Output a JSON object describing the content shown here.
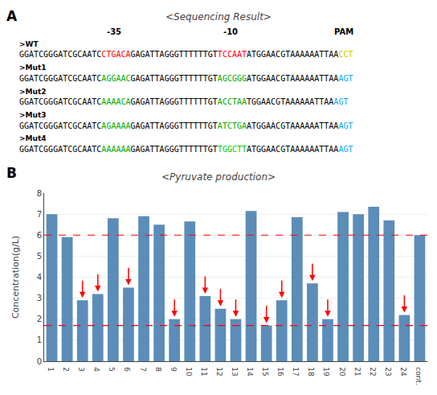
{
  "chart_data": [
    {
      "type": "text",
      "panel_label": "A",
      "title": "<Sequencing Result>",
      "annotations": [
        "-35",
        "-10",
        "PAM"
      ],
      "sequences": [
        {
          "label": ">WT",
          "parts": [
            {
              "text": "GGATCGGGATCGCAATC",
              "color": "black"
            },
            {
              "text": "CTGACA",
              "color": "red"
            },
            {
              "text": "GAGATTAGGGTTTTTTGT",
              "color": "black"
            },
            {
              "text": "TCCAAT",
              "color": "red"
            },
            {
              "text": "ATGGAACGTAAAAAATTAA",
              "color": "black"
            },
            {
              "text": "CCT",
              "color": "#cccc00"
            }
          ]
        },
        {
          "label": ">Mut1",
          "parts": [
            {
              "text": "GGATCGGGATCGCAATC",
              "color": "black"
            },
            {
              "text": "AGGAAC",
              "color": "#00aa00"
            },
            {
              "text": "GAGATTAGGGTTTTTTGT",
              "color": "black"
            },
            {
              "text": "AGCGGG",
              "color": "#00aa00"
            },
            {
              "text": "ATGGAACGTAAAAAATTAA",
              "color": "black"
            },
            {
              "text": "AGT",
              "color": "#00aaff"
            }
          ]
        },
        {
          "label": ">Mut2",
          "parts": [
            {
              "text": "GGATCGGGATCGCAATC",
              "color": "black"
            },
            {
              "text": "AAAACA",
              "color": "#00aa00"
            },
            {
              "text": "GAGATTAGGGTTTTTTGT",
              "color": "black"
            },
            {
              "text": "ACCTAA",
              "color": "#00aa00"
            },
            {
              "text": "TGGAACGTAAAAAATTAA",
              "color": "black"
            },
            {
              "text": "AGT",
              "color": "#00aaff"
            }
          ]
        },
        {
          "label": ">Mut3",
          "parts": [
            {
              "text": "GGATCGGGATCGCAATC",
              "color": "black"
            },
            {
              "text": "AGAAAA",
              "color": "#00aa00"
            },
            {
              "text": "GAGATTAGGGTTTTTTGT",
              "color": "black"
            },
            {
              "text": "ATCTGA",
              "color": "#00aa00"
            },
            {
              "text": "ATGGAACGTAAAAAATTAA",
              "color": "black"
            },
            {
              "text": "AGT",
              "color": "#00aaff"
            }
          ]
        },
        {
          "label": ">Mut4",
          "parts": [
            {
              "text": "GGATCGGGATCGCAATC",
              "color": "black"
            },
            {
              "text": "AAAAAA",
              "color": "#00aa00"
            },
            {
              "text": "GAGATTAGGGTTTTTTGT",
              "color": "black"
            },
            {
              "text": "TGGCTT",
              "color": "#00cc00"
            },
            {
              "text": "ATGGAACGTAAAAAATTAA",
              "color": "black"
            },
            {
              "text": "AGT",
              "color": "#00aaff"
            }
          ]
        }
      ]
    },
    {
      "type": "bar",
      "panel_label": "B",
      "title": "<Pyruvate production>",
      "categories": [
        "1",
        "2",
        "3",
        "4",
        "5",
        "6",
        "7",
        "8",
        "9",
        "10",
        "11",
        "12",
        "13",
        "14",
        "15",
        "16",
        "17",
        "18",
        "19",
        "20",
        "21",
        "22",
        "23",
        "24",
        "cont."
      ],
      "values": [
        7.0,
        5.9,
        2.9,
        3.2,
        6.8,
        3.5,
        6.9,
        6.5,
        2.0,
        6.65,
        3.1,
        2.5,
        2.0,
        7.15,
        1.7,
        2.9,
        6.85,
        3.7,
        2.0,
        7.1,
        7.0,
        7.35,
        6.7,
        2.2,
        6.0
      ],
      "color": "#5b8db8",
      "ylabel": "Concentration(g/L)",
      "ylim": [
        0,
        8
      ],
      "yticks": [
        0,
        1,
        2,
        3,
        4,
        5,
        6,
        7,
        8
      ],
      "grid": true,
      "reference_lines": {
        "values": [
          6.0,
          1.7
        ],
        "color": "red",
        "line_style": "dashed"
      },
      "arrows": {
        "categories": [
          "3",
          "4",
          "6",
          "9",
          "11",
          "12",
          "13",
          "15",
          "16",
          "18",
          "19",
          "24"
        ],
        "color": "red"
      }
    }
  ]
}
